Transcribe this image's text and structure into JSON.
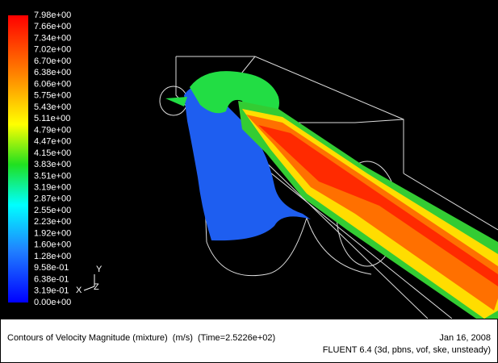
{
  "colorbar": {
    "labels": [
      "7.98e+00",
      "7.66e+00",
      "7.34e+00",
      "7.02e+00",
      "6.70e+00",
      "6.38e+00",
      "6.06e+00",
      "5.75e+00",
      "5.43e+00",
      "5.11e+00",
      "4.79e+00",
      "4.47e+00",
      "4.15e+00",
      "3.83e+00",
      "3.51e+00",
      "3.19e+00",
      "2.87e+00",
      "2.55e+00",
      "2.23e+00",
      "1.92e+00",
      "1.60e+00",
      "1.28e+00",
      "9.58e-01",
      "6.38e-01",
      "3.19e-01",
      "0.00e+00"
    ]
  },
  "axes": {
    "y": "Y",
    "x": "X",
    "z": "Z"
  },
  "footer": {
    "title": "Contours of Velocity Magnitude (mixture)  (m/s)  (Time=2.5226e+02)",
    "date": "Jan 16, 2008",
    "version": "FLUENT 6.4 (3d, pbns, vof, ske, unsteady)"
  }
}
